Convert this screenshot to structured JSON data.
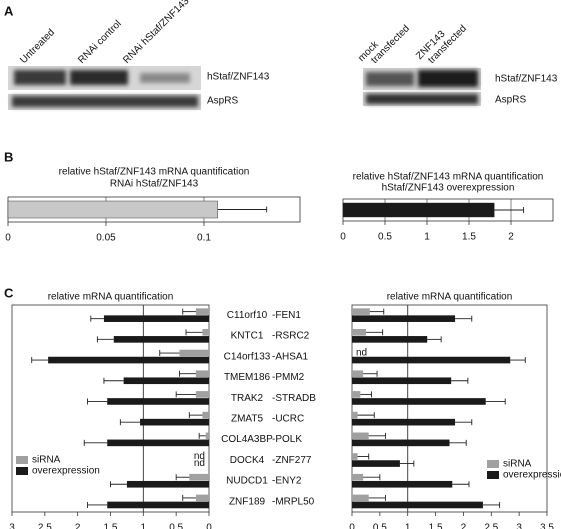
{
  "panels": [
    "A",
    "B",
    "C"
  ],
  "panel_a": {
    "left": {
      "lanes": [
        "Untreated",
        "RNAi control",
        "RNAi hStaf/ZNF143"
      ],
      "bands": [
        "hStaf/ZNF143",
        "AspRS"
      ]
    },
    "right": {
      "lanes": [
        [
          "mock",
          "transfected"
        ],
        [
          "ZNF143",
          "transfected"
        ]
      ],
      "bands": [
        "hStaf/ZNF143",
        "AspRS"
      ]
    }
  },
  "chart_data": [
    {
      "type": "bar",
      "orientation": "horizontal",
      "title": "relative hStaf/ZNF143 mRNA quantification",
      "subtitle": "RNAi hStaf/ZNF143",
      "values": [
        0.107
      ],
      "errors": [
        0.025
      ],
      "color": "#c8c8c8",
      "xlim": [
        0,
        0.149
      ],
      "xticks": [
        0,
        0.05,
        0.1
      ],
      "grid": true
    },
    {
      "type": "bar",
      "orientation": "horizontal",
      "title": "relative hStaf/ZNF143 mRNA quantification",
      "subtitle": "hStaf/ZNF143 overexpression",
      "values": [
        1.8
      ],
      "errors": [
        0.35
      ],
      "color": "#1a1a1a",
      "xlim": [
        0,
        2.5
      ],
      "xticks": [
        0,
        0.5,
        1,
        1.5,
        2
      ],
      "grid": true
    },
    {
      "type": "bar",
      "orientation": "horizontal",
      "title": "relative mRNA quantification",
      "categories": [
        "C11orf10",
        "KNTC1",
        "C14orf133",
        "TMEM186",
        "TRAK2",
        "ZMAT5",
        "COL4A3BP",
        "DOCK4",
        "NUDCD1",
        "ZNF189"
      ],
      "series": [
        {
          "name": "siRNA",
          "color": "#a0a0a0",
          "values": [
            0.2,
            0.1,
            0.45,
            0.2,
            0.2,
            0.1,
            0.05,
            null,
            0.3,
            0.2
          ],
          "errors": [
            0.2,
            0.25,
            0.3,
            0.25,
            0.3,
            0.2,
            0.1,
            null,
            0.2,
            0.2
          ],
          "value_labels": [
            null,
            null,
            null,
            null,
            null,
            null,
            null,
            "nd",
            null,
            null
          ]
        },
        {
          "name": "overexpression",
          "color": "#1a1a1a",
          "values": [
            1.6,
            1.45,
            2.45,
            1.3,
            1.55,
            1.05,
            1.55,
            null,
            1.25,
            1.55
          ],
          "errors": [
            0.2,
            0.25,
            0.25,
            0.3,
            0.3,
            0.3,
            0.35,
            null,
            0.25,
            0.3
          ],
          "value_labels": [
            null,
            null,
            null,
            null,
            null,
            null,
            null,
            "nd",
            null,
            null
          ]
        }
      ],
      "xlim": [
        3,
        0
      ],
      "xticks": [
        3,
        2.5,
        2,
        1.5,
        1,
        0.5,
        0
      ],
      "reference_line": 1,
      "legend": "lower left"
    },
    {
      "type": "bar",
      "orientation": "horizontal",
      "title": "relative mRNA quantification",
      "categories": [
        "-FEN1",
        "-RSRC2",
        "-AHSA1",
        "-PMM2",
        "-STRADB",
        "-UCRC",
        "-POLK",
        "-ZNF277",
        "-ENY2",
        "-MRPL50"
      ],
      "series": [
        {
          "name": "siRNA",
          "color": "#a0a0a0",
          "values": [
            0.32,
            0.25,
            null,
            0.2,
            0.15,
            0.1,
            0.3,
            0.1,
            0.2,
            0.3
          ],
          "errors": [
            0.25,
            0.3,
            null,
            0.25,
            0.2,
            0.3,
            0.3,
            0.2,
            0.3,
            0.3
          ],
          "value_labels": [
            null,
            null,
            "nd",
            null,
            null,
            null,
            null,
            null,
            null,
            null
          ]
        },
        {
          "name": "overexpression",
          "color": "#1a1a1a",
          "values": [
            1.85,
            1.35,
            2.84,
            1.78,
            2.4,
            1.85,
            1.75,
            0.86,
            1.8,
            2.35
          ],
          "errors": [
            0.3,
            0.25,
            0.27,
            0.3,
            0.35,
            0.3,
            0.3,
            0.25,
            0.3,
            0.3
          ]
        }
      ],
      "xlim": [
        0,
        3.5
      ],
      "xticks": [
        0,
        0.5,
        1,
        1.5,
        2,
        2.5,
        3,
        3.5
      ],
      "reference_line": 1,
      "legend": "lower right"
    }
  ]
}
